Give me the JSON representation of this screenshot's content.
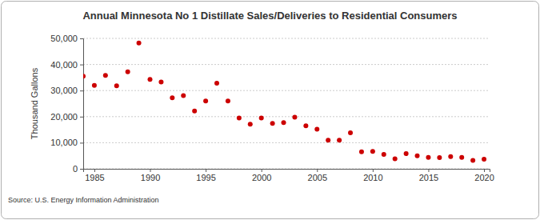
{
  "chart_data": {
    "type": "scatter",
    "title": "Annual Minnesota No 1 Distillate Sales/Deliveries to Residential Consumers",
    "y_label": "Thousand Gallons",
    "source": "Source: U.S. Energy Information Administration",
    "x": [
      1984,
      1985,
      1986,
      1987,
      1988,
      1989,
      1990,
      1991,
      1992,
      1993,
      1994,
      1995,
      1996,
      1997,
      1998,
      1999,
      2000,
      2001,
      2002,
      2003,
      2004,
      2005,
      2006,
      2007,
      2008,
      2009,
      2010,
      2011,
      2012,
      2013,
      2014,
      2015,
      2016,
      2017,
      2018,
      2019,
      2020
    ],
    "values": [
      35500,
      32000,
      35800,
      31800,
      37200,
      48200,
      34300,
      33300,
      27200,
      28100,
      22200,
      26000,
      32800,
      26000,
      19500,
      17100,
      19500,
      17400,
      17700,
      19800,
      16500,
      15200,
      11000,
      11000,
      13800,
      6500,
      6700,
      5500,
      3800,
      5800,
      5000,
      4400,
      4300,
      4700,
      4400,
      3200,
      3700
    ],
    "color": "#cc0000",
    "marker": "circle",
    "xlim": [
      1984,
      2020.5
    ],
    "xticks": [
      1985,
      1990,
      1995,
      2000,
      2005,
      2010,
      2015,
      2020
    ],
    "ylim": [
      0,
      50000
    ],
    "yticks": [
      0,
      {
        "value": 10000,
        "label": "10,000"
      },
      {
        "value": 20000,
        "label": "20,000"
      },
      {
        "value": 30000,
        "label": "30,000"
      },
      {
        "value": 40000,
        "label": "40,000"
      },
      {
        "value": 50000,
        "label": "50,000"
      }
    ],
    "grid": true
  }
}
